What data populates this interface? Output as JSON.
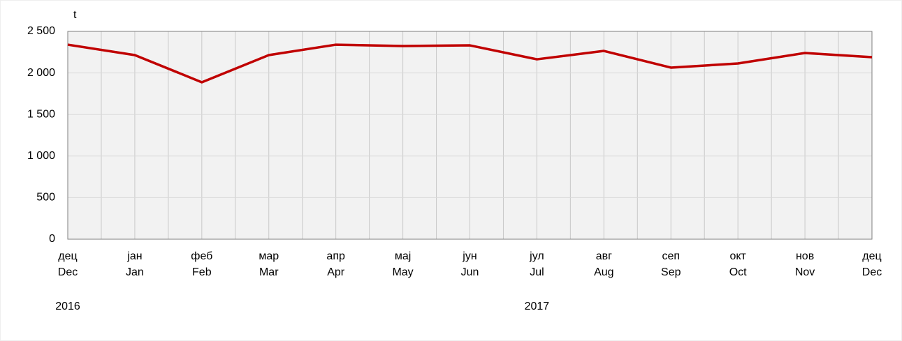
{
  "chart_data": {
    "type": "line",
    "y_label": "t",
    "categories": [
      "дец",
      "јан",
      "феб",
      "мар",
      "апр",
      "мај",
      "јун",
      "јул",
      "авг",
      "сеп",
      "окт",
      "нов",
      "дец"
    ],
    "categories_en": [
      "Dec",
      "Jan",
      "Feb",
      "Mar",
      "Apr",
      "May",
      "Jun",
      "Jul",
      "Aug",
      "Sep",
      "Oct",
      "Nov",
      "Dec"
    ],
    "years": [
      "2016",
      "2017"
    ],
    "series": [
      {
        "color": "#c00000",
        "values": [
          2340,
          2215,
          1888,
          2215,
          2340,
          2324,
          2332,
          2164,
          2265,
          2064,
          2114,
          2240,
          2190
        ]
      }
    ],
    "ylim": [
      0,
      2500
    ],
    "yticks": [
      0,
      500,
      {
        "value": 1000,
        "label": "1 000"
      },
      {
        "value": 1500,
        "label": "1 500"
      },
      {
        "value": 2000,
        "label": "2 000"
      },
      {
        "value": 2500,
        "label": "2 500"
      }
    ],
    "grid": true
  }
}
